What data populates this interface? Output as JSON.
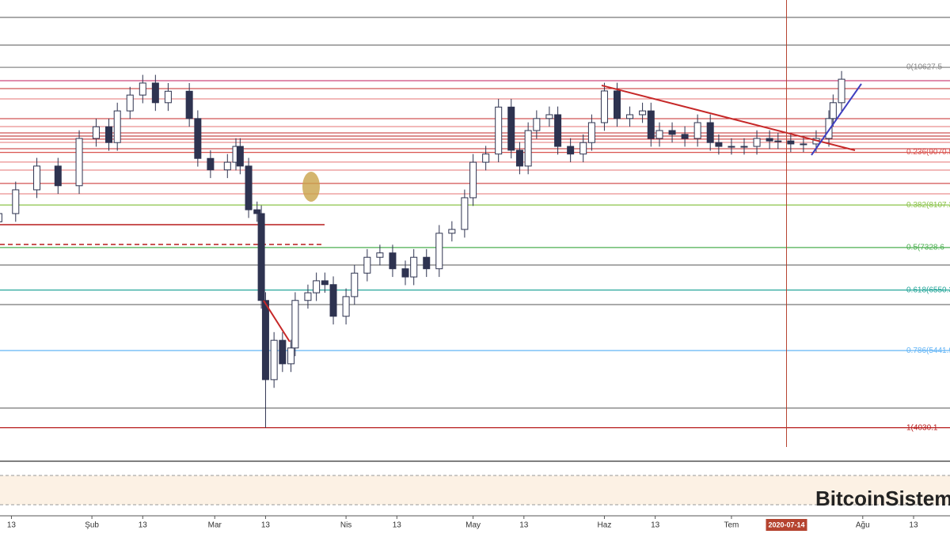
{
  "chart_data": {
    "type": "candlestick",
    "x": [
      10,
      14,
      19,
      24,
      29,
      33,
      36,
      38,
      41,
      44,
      47,
      50,
      55,
      57,
      60,
      64,
      66,
      67,
      69,
      71,
      72,
      73,
      75,
      77,
      79,
      80,
      83,
      85,
      87,
      89,
      92,
      94,
      97,
      100,
      103,
      106,
      108,
      111,
      114,
      117,
      120,
      122,
      125,
      128,
      131,
      133,
      135,
      137,
      140,
      142,
      145,
      148,
      150,
      153,
      156,
      159,
      162,
      164,
      166,
      169,
      172,
      175,
      178,
      180,
      183,
      186,
      189,
      192,
      194,
      197,
      200,
      203,
      206,
      207,
      209
    ],
    "open": [
      7800,
      7950,
      8385,
      8820,
      8460,
      9325,
      9540,
      9250,
      9830,
      10120,
      10340,
      9980,
      10190,
      9690,
      8960,
      8750,
      8890,
      9180,
      8820,
      8020,
      7950,
      6360,
      4910,
      5630,
      5200,
      5490,
      6360,
      6500,
      6720,
      6650,
      6070,
      6430,
      6860,
      7150,
      7230,
      6940,
      6790,
      7150,
      6940,
      7590,
      7660,
      8240,
      8890,
      9040,
      9900,
      9110,
      8820,
      9470,
      9690,
      9760,
      9180,
      9040,
      9250,
      9615,
      10195,
      9690,
      9760,
      9830,
      9325,
      9470,
      9400,
      9325,
      9615,
      9250,
      9180,
      9180,
      9180,
      9325,
      9280,
      9280,
      9225,
      9225,
      9325,
      9690,
      9980
    ],
    "high": [
      8100,
      8535,
      8970,
      8970,
      9475,
      9690,
      9690,
      9980,
      10270,
      10490,
      10490,
      10340,
      10340,
      9840,
      9110,
      9040,
      9330,
      9330,
      8970,
      8170,
      8100,
      6510,
      5780,
      5780,
      5640,
      6510,
      6650,
      6870,
      6870,
      6800,
      6580,
      7010,
      7300,
      7380,
      7380,
      7090,
      7300,
      7300,
      7740,
      7810,
      8390,
      9040,
      9190,
      10050,
      10050,
      9260,
      9620,
      9840,
      9910,
      9910,
      9330,
      9400,
      9765,
      10345,
      10345,
      9910,
      9980,
      9980,
      9620,
      9620,
      9550,
      9765,
      9765,
      9400,
      9330,
      9330,
      9475,
      9475,
      9430,
      9430,
      9375,
      9475,
      9840,
      10130,
      10560
    ],
    "low": [
      7650,
      7800,
      8235,
      8310,
      8310,
      9175,
      9100,
      9100,
      9680,
      9970,
      9830,
      9830,
      9540,
      8810,
      8600,
      8600,
      8740,
      8670,
      7870,
      7800,
      6210,
      4030,
      4760,
      5050,
      5050,
      5340,
      6210,
      6350,
      6500,
      5920,
      5920,
      6280,
      6710,
      7000,
      6790,
      6640,
      6640,
      6790,
      6790,
      7440,
      7510,
      8090,
      8740,
      8890,
      8960,
      8670,
      8670,
      9320,
      9540,
      9030,
      8890,
      8890,
      9100,
      9465,
      9540,
      9540,
      9610,
      9175,
      9175,
      9250,
      9175,
      9175,
      9100,
      9030,
      9030,
      9030,
      9030,
      9130,
      9130,
      9075,
      9075,
      9075,
      9175,
      9540,
      9830
    ],
    "close": [
      7950,
      8385,
      8820,
      8460,
      9325,
      9540,
      9250,
      9830,
      10120,
      10340,
      9980,
      10190,
      9690,
      8960,
      8750,
      8890,
      9180,
      8820,
      8020,
      7950,
      6360,
      4910,
      5630,
      5200,
      5490,
      6360,
      6500,
      6720,
      6650,
      6070,
      6430,
      6860,
      7150,
      7230,
      6940,
      6790,
      7150,
      6940,
      7590,
      7660,
      8240,
      8890,
      9040,
      9900,
      9110,
      8820,
      9470,
      9690,
      9760,
      9180,
      9040,
      9250,
      9615,
      10195,
      9690,
      9760,
      9830,
      9325,
      9470,
      9400,
      9325,
      9615,
      9250,
      9180,
      9180,
      9180,
      9325,
      9280,
      9280,
      9225,
      9225,
      9325,
      9690,
      9980,
      10410
    ],
    "up_color": "#ffffff",
    "down_color": "#2e3350",
    "xlim": [
      10.3,
      234.6
    ],
    "ylim": [
      3460,
      11860
    ],
    "xticks": [
      13,
      {
        "value": 32,
        "label": "Şub"
      },
      {
        "value": 44,
        "label": "13"
      },
      {
        "value": 61,
        "label": "Mar"
      },
      {
        "value": 73,
        "label": "13"
      },
      {
        "value": 92,
        "label": "Nis"
      },
      {
        "value": 104,
        "label": "13"
      },
      {
        "value": 122,
        "label": "May"
      },
      {
        "value": 134,
        "label": "13"
      },
      {
        "value": 153,
        "label": "Haz"
      },
      {
        "value": 165,
        "label": "13"
      },
      {
        "value": 183,
        "label": "Tem"
      },
      {
        "value": 214,
        "label": "Ağu"
      },
      {
        "value": 226,
        "label": "13"
      }
    ],
    "cursor": {
      "value": 196,
      "label": "2020-07-14",
      "color": "#b5432f"
    },
    "levels": [
      {
        "value": 11541,
        "color": "#555555"
      },
      {
        "value": 11035,
        "color": "#555555"
      },
      {
        "value": 7009,
        "color": "#555555"
      },
      {
        "value": 6285,
        "color": "#555555"
      },
      {
        "value": 4388,
        "color": "#555555"
      },
      {
        "value": 10383,
        "color": "#c2185b"
      },
      {
        "value": 10238,
        "color": "#c62828"
      },
      {
        "value": 10050,
        "color": "#e57373"
      },
      {
        "value": 9688,
        "color": "#c62828"
      },
      {
        "value": 9543,
        "color": "#e57373"
      },
      {
        "value": 9427,
        "color": "#c62828"
      },
      {
        "value": 9369,
        "color": "#b71c1c"
      },
      {
        "value": 9312,
        "color": "#c62828"
      },
      {
        "value": 9254,
        "color": "#e57373"
      },
      {
        "value": 9138,
        "color": "#c62828"
      },
      {
        "value": 8892,
        "color": "#e57373"
      },
      {
        "value": 8747,
        "color": "#e57373"
      },
      {
        "value": 8501,
        "color": "#c62828"
      },
      {
        "value": 8312,
        "color": "#e57373"
      }
    ],
    "fib_levels": [
      {
        "value": 10627.5,
        "label": "0(10627.5",
        "color": "#888888"
      },
      {
        "value": 9070.5,
        "label": "0.236(9070.5",
        "color": "#d9534f"
      },
      {
        "value": 8107.3,
        "label": "0.382(8107.3",
        "color": "#8bc34a"
      },
      {
        "value": 7328.6,
        "label": "0.5(7328.6",
        "color": "#4caf50"
      },
      {
        "value": 6550.3,
        "label": "0.618(6550.3",
        "color": "#26a69a"
      },
      {
        "value": 5441.9,
        "label": "0.786(5441.9",
        "color": "#64b5f6"
      },
      {
        "value": 4030.1,
        "label": "1(4030.1",
        "color": "#b71c1c"
      }
    ],
    "watermark": "BitcoinSistemi"
  }
}
